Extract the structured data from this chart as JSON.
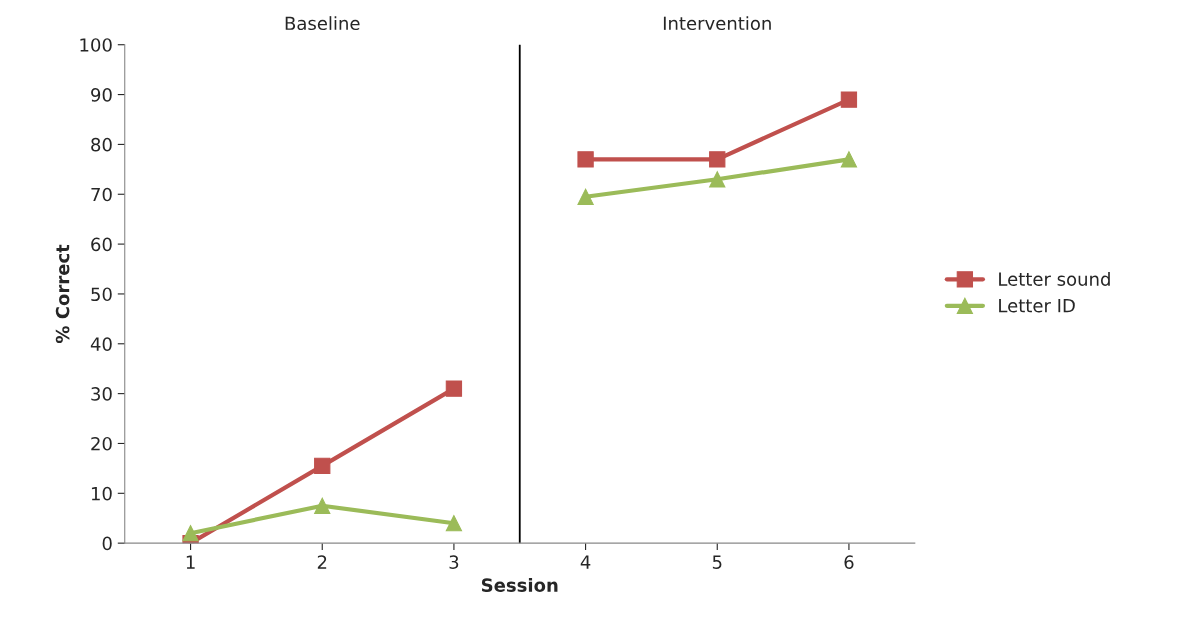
{
  "chart_data": {
    "type": "line",
    "xlabel": "Session",
    "ylabel": "% Correct",
    "x": [
      1,
      2,
      3
    ],
    "xlim": [
      0.5,
      6.5
    ],
    "xticks": [
      1,
      2,
      3,
      4,
      5,
      6
    ],
    "ylim": [
      0,
      100
    ],
    "yticks": [
      0,
      10,
      20,
      30,
      40,
      50,
      60,
      70,
      80,
      90,
      100
    ],
    "series": [
      {
        "name": "Letter sound",
        "color": "#c0504d",
        "marker": "square",
        "values": [
          0,
          15.5,
          31
        ]
      },
      {
        "name": "Letter ID",
        "color": "#9bbb59",
        "marker": "triangle",
        "values": [
          2,
          7.5,
          4
        ]
      },
      {
        "color": "#c0504d",
        "marker": "square",
        "x": [
          4,
          5,
          6
        ],
        "values": [
          77,
          77,
          89
        ]
      },
      {
        "color": "#9bbb59",
        "marker": "triangle",
        "x": [
          4,
          5,
          6
        ],
        "values": [
          69.5,
          73,
          77
        ]
      }
    ],
    "ref_lines": [
      {
        "axis": "x",
        "value": 3.5,
        "color": "#000000"
      }
    ],
    "annotations": [
      "Baseline",
      "Intervention"
    ],
    "grid": false,
    "legend": "right"
  }
}
